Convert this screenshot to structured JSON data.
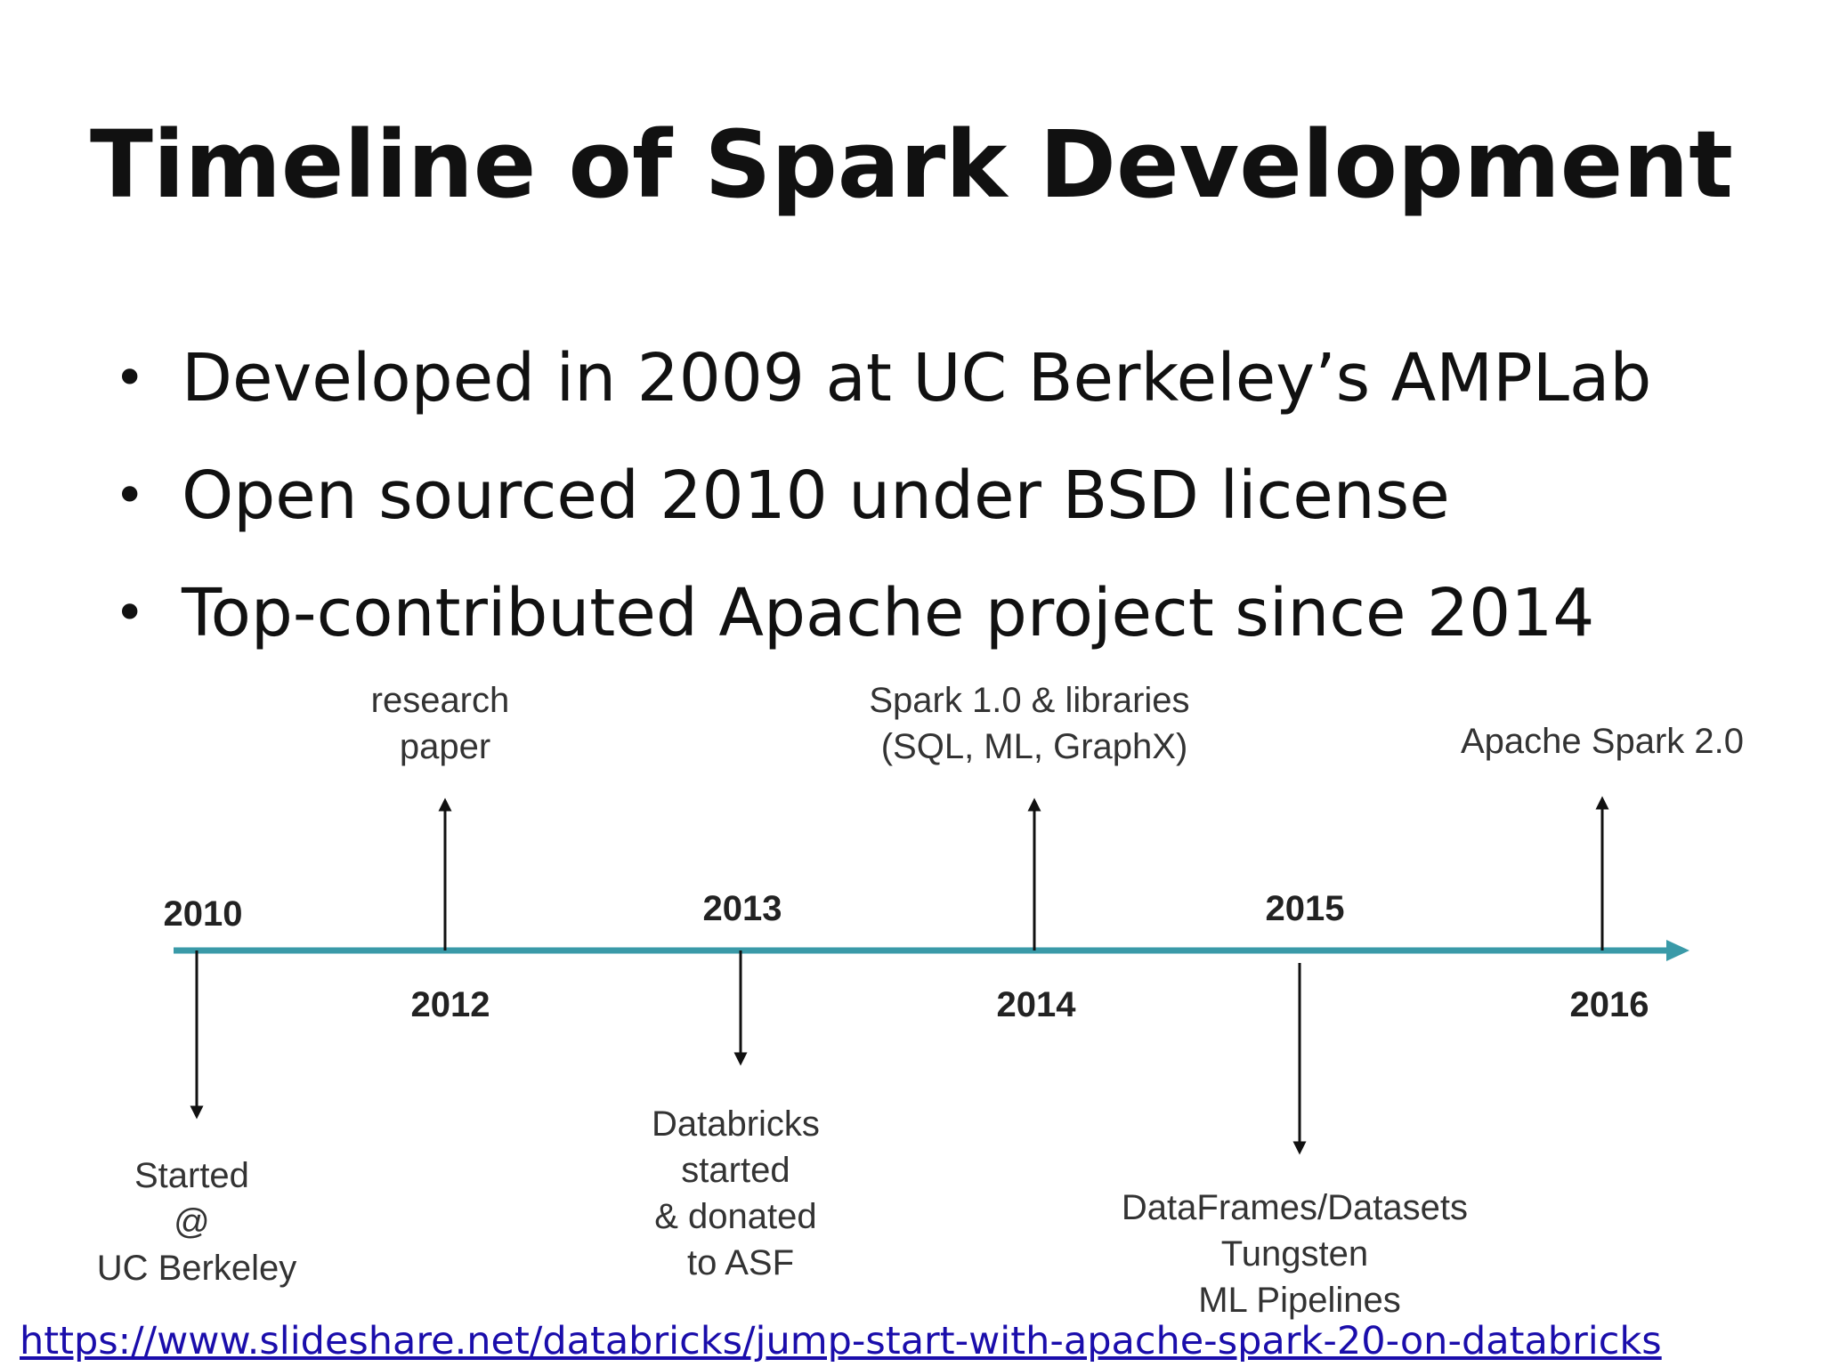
{
  "slide": {
    "title": "Timeline of Spark Development",
    "bullets": [
      "Developed in 2009 at UC Berkeley’s AMPLab",
      "Open sourced 2010 under BSD license",
      "Top-contributed Apache project since 2014"
    ],
    "bullet_symbol": "•",
    "source_url": "https://www.slideshare.net/databricks/jump-start-with-apache-spark-20-on-databricks"
  },
  "timeline": {
    "axis_color": "#3a9aa8",
    "years_above": [
      "2010",
      "2013",
      "2015"
    ],
    "years_below": [
      "2012",
      "2014",
      "2016"
    ],
    "events_above": [
      {
        "lines": [
          "research",
          "paper"
        ]
      },
      {
        "lines": [
          "Spark 1.0 & libraries",
          "(SQL, ML, GraphX)"
        ]
      },
      {
        "lines": [
          "Apache Spark 2.0"
        ]
      }
    ],
    "events_below": [
      {
        "lines": [
          "Started",
          "@",
          "UC Berkeley"
        ]
      },
      {
        "lines": [
          "Databricks",
          "started",
          "& donated",
          "to ASF"
        ]
      },
      {
        "lines": [
          "DataFrames/Datasets",
          "Tungsten",
          "ML Pipelines"
        ]
      }
    ]
  }
}
